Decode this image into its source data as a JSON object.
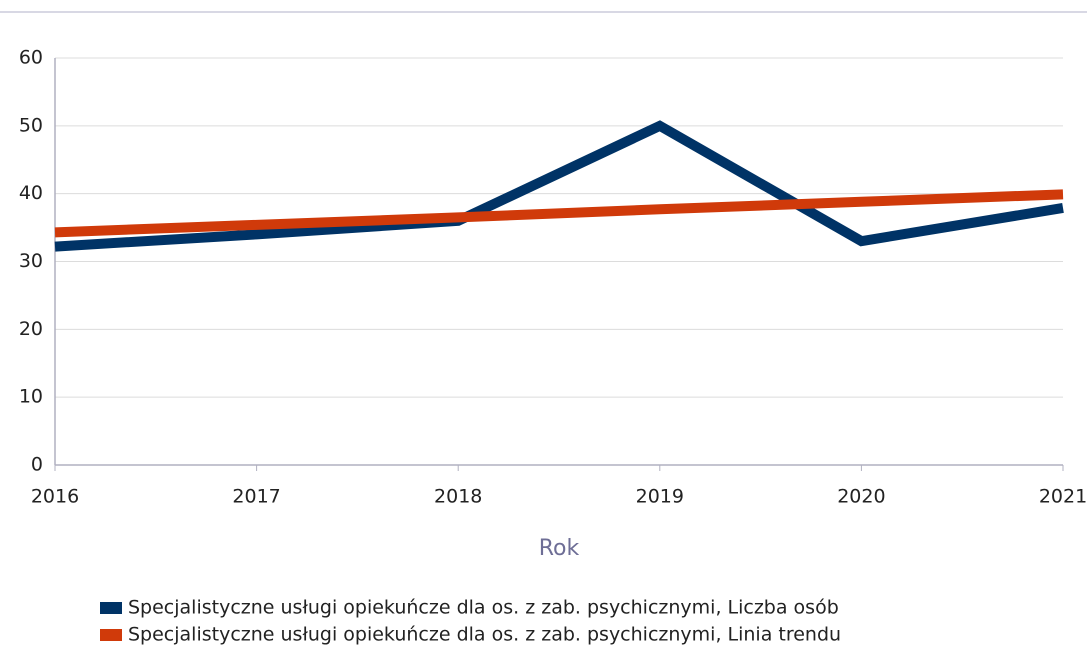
{
  "chart_data": {
    "type": "line",
    "x": [
      2016,
      2017,
      2018,
      2019,
      2020,
      2021
    ],
    "xlim": [
      2016,
      2021
    ],
    "xticks": [
      2016,
      2017,
      2018,
      2019,
      2020,
      2021
    ],
    "xlabel": "Rok",
    "ylim": [
      0,
      60
    ],
    "yticks": [
      0,
      10,
      20,
      30,
      40,
      50,
      60
    ],
    "grid": true,
    "legend": "bottom",
    "series": [
      {
        "name": "Specjalistyczne usługi opiekuńcze dla os. z zab. psychicznymi, Liczba osób",
        "color": "#003366",
        "values": [
          32.2,
          34,
          36,
          50,
          33,
          37.9
        ]
      },
      {
        "name": "Specjalistyczne usługi opiekuńcze dla os. z zab. psychicznymi, Linia trendu",
        "color": "#d03a0a",
        "values": [
          34.3,
          35.4,
          36.5,
          37.7,
          38.8,
          39.9
        ]
      }
    ]
  }
}
